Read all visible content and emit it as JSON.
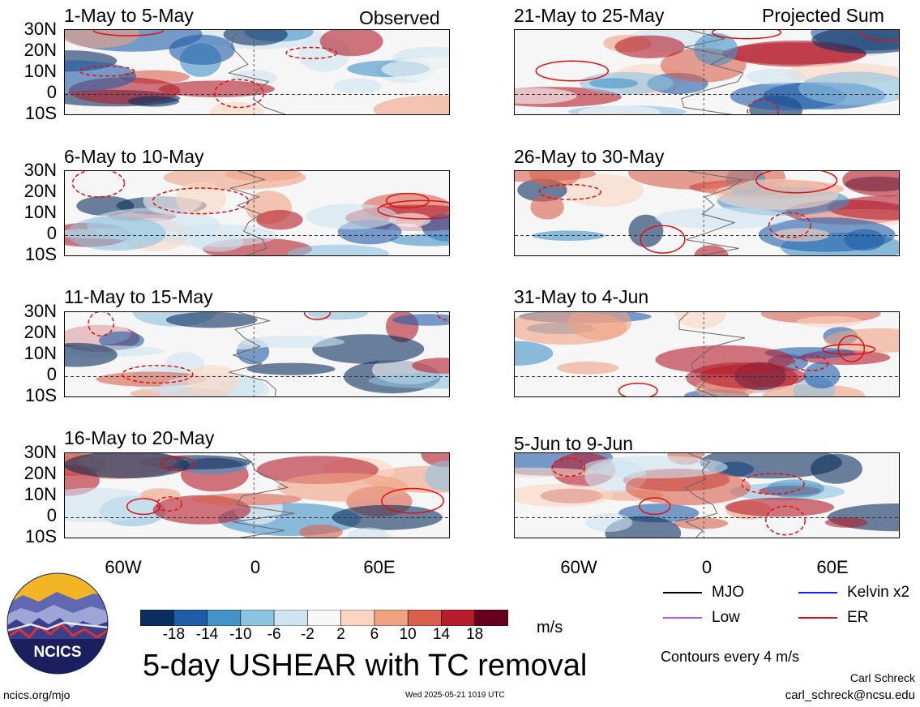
{
  "header": {
    "observed_label": "Observed",
    "projected_label": "Projected Sum"
  },
  "panels": {
    "observed": [
      {
        "title": "1-May to 5-May"
      },
      {
        "title": "6-May to 10-May"
      },
      {
        "title": "11-May to 15-May"
      },
      {
        "title": "16-May to 20-May"
      }
    ],
    "projected": [
      {
        "title": "21-May to 25-May"
      },
      {
        "title": "26-May to 30-May"
      },
      {
        "title": "31-May to 4-Jun"
      },
      {
        "title": "5-Jun to 9-Jun"
      }
    ]
  },
  "axes": {
    "lat_labels": [
      "30N",
      "20N",
      "10N",
      "0",
      "10S"
    ],
    "lon_labels": [
      "60W",
      "0",
      "60E"
    ]
  },
  "legend": {
    "items": [
      {
        "label": "MJO",
        "color": "#000000"
      },
      {
        "label": "Kelvin x2",
        "color": "#1a1aff"
      },
      {
        "label": "Low",
        "color": "#b05bff"
      },
      {
        "label": "ER",
        "color": "#e01010"
      }
    ],
    "contour_note": "Contours every 4 m/s"
  },
  "colorbar": {
    "labels": [
      "-18",
      "-14",
      "-10",
      "-6",
      "-2",
      "2",
      "6",
      "10",
      "14",
      "18"
    ],
    "colors": [
      "#0b2e5e",
      "#1f5da8",
      "#4392c8",
      "#8dc3df",
      "#cfe4f0",
      "#f7f7f7",
      "#fbd5c2",
      "#f0a283",
      "#d9604c",
      "#b41d2c",
      "#67001f"
    ],
    "units": "m/s"
  },
  "title": "5-day USHEAR with TC removal",
  "footer": {
    "url": "ncics.org/mjo",
    "timestamp": "Wed 2025-05-21 1019 UTC",
    "author": "Carl Schreck",
    "email": "carl_schreck@ncsu.edu",
    "logo_text": "NCICS"
  }
}
